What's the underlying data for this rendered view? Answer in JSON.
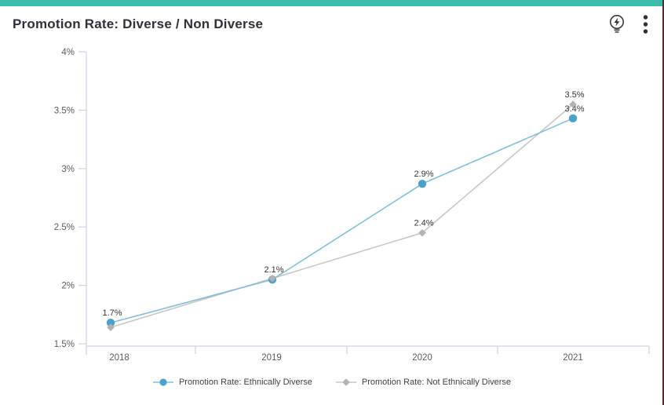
{
  "header": {
    "title": "Promotion Rate: Diverse / Non Diverse",
    "icons": {
      "insights": "lightbulb-bolt-icon",
      "menu": "kebab-menu-icon"
    }
  },
  "chart_data": {
    "type": "line",
    "title": "Promotion Rate: Diverse / Non Diverse",
    "categories": [
      "2018",
      "2019",
      "2020",
      "2021"
    ],
    "series": [
      {
        "name": "Promotion Rate: Ethnically Diverse",
        "marker": "circle",
        "marker_color": "#4aa2c9",
        "line_color": "#7fc0dd",
        "values": [
          1.7,
          2.1,
          2.9,
          3.4
        ],
        "plot_values": [
          1.68,
          2.05,
          2.87,
          3.43
        ],
        "point_labels": [
          "1.7%",
          "2.1%",
          "2.9%",
          "3.4%"
        ]
      },
      {
        "name": "Promotion Rate: Not Ethnically Diverse",
        "marker": "diamond",
        "marker_color": "#b5b2b0",
        "line_color": "#c9c6c4",
        "values": [
          1.65,
          2.1,
          2.4,
          3.5
        ],
        "plot_values": [
          1.64,
          2.06,
          2.45,
          3.55
        ],
        "point_labels": [
          "",
          "",
          "2.4%",
          "3.5%"
        ]
      }
    ],
    "y_axis": {
      "unit": "%",
      "min": 1.5,
      "max": 4,
      "tick_values": [
        4,
        3.5,
        3,
        2.5,
        2,
        1.5
      ],
      "tick_labels": [
        "4%",
        "3.5%",
        "3%",
        "2.5%",
        "2%",
        "1.5%"
      ]
    },
    "x_axis": {
      "tick_labels": [
        "2018",
        "2019",
        "2020",
        "2021"
      ]
    },
    "grid": false,
    "legend_position": "bottom"
  },
  "colors": {
    "accent_bar": "#3cbcaa",
    "edge_line": "#5a2a33",
    "axis": "#cdd2ed",
    "axis_text": "#5a5a5a",
    "data_label": "#333333"
  }
}
